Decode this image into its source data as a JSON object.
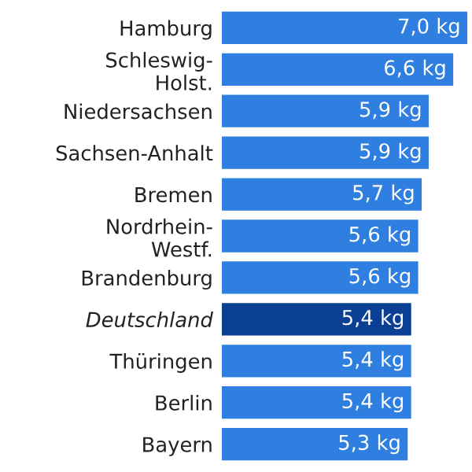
{
  "chart_data": {
    "type": "bar",
    "orientation": "horizontal",
    "categories": [
      "Hamburg",
      "Schleswig-\nHolst.",
      "Niedersachsen",
      "Sachsen-Anhalt",
      "Bremen",
      "Nordrhein-\nWestf.",
      "Brandenburg",
      "Deutschland",
      "Thüringen",
      "Berlin",
      "Bayern"
    ],
    "values": [
      7.0,
      6.6,
      5.9,
      5.9,
      5.7,
      5.6,
      5.6,
      5.4,
      5.4,
      5.4,
      5.3
    ],
    "value_labels": [
      "7,0 kg",
      "6,6 kg",
      "5,9 kg",
      "5,9 kg",
      "5,7 kg",
      "5,6 kg",
      "5,6 kg",
      "5,4 kg",
      "5,4 kg",
      "5,4 kg",
      "5,3 kg"
    ],
    "colors": [
      "#2f7fe0",
      "#2f7fe0",
      "#2f7fe0",
      "#2f7fe0",
      "#2f7fe0",
      "#2f7fe0",
      "#2f7fe0",
      "#0b3f93",
      "#2f7fe0",
      "#2f7fe0",
      "#2f7fe0"
    ],
    "legend": false,
    "grid": false
  }
}
